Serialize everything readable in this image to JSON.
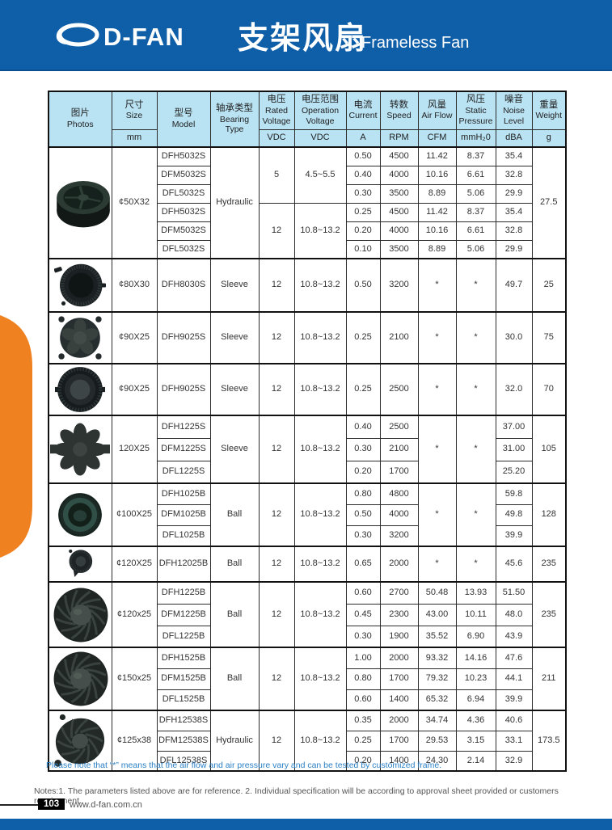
{
  "header": {
    "brand": "D-FAN",
    "logo_icon": "d-fan-swoosh-icon",
    "title_zh": "支架风扇",
    "title_en": "Frameless Fan",
    "bar_color": "#0e5ea8"
  },
  "side_tab": {
    "label": "Frameless Fan",
    "color": "#f08121"
  },
  "table": {
    "header_bg": "#b9e2f3",
    "columns": [
      {
        "zh": "图片",
        "en": "Photos",
        "unit": ""
      },
      {
        "zh": "尺寸",
        "en": "Size",
        "unit": "mm"
      },
      {
        "zh": "型号",
        "en": "Model",
        "unit": ""
      },
      {
        "zh": "轴承类型",
        "en": "Bearing Type",
        "unit": ""
      },
      {
        "zh": "电压",
        "en": "Rated Voltage",
        "unit": "VDC"
      },
      {
        "zh": "电压范围",
        "en": "Operation Voltage",
        "unit": "VDC"
      },
      {
        "zh": "电流",
        "en": "Current",
        "unit": "A"
      },
      {
        "zh": "转数",
        "en": "Speed",
        "unit": "RPM"
      },
      {
        "zh": "风量",
        "en": "Air Flow",
        "unit": "CFM"
      },
      {
        "zh": "风压",
        "en": "Static Pressure",
        "unit": "mmH₂0"
      },
      {
        "zh": "噪音",
        "en": "Noise Level",
        "unit": "dBA"
      },
      {
        "zh": "重量",
        "en": "Weight",
        "unit": "g"
      }
    ],
    "groups": [
      {
        "photo_icon": "fan-photo-centrifugal",
        "size": "¢50X32",
        "bearing": "Hydraulic",
        "weight": "27.5",
        "blocks": [
          {
            "rated": "5",
            "operation": "4.5~5.5",
            "rows": [
              {
                "model": "DFH5032S",
                "current": "0.50",
                "speed": "4500",
                "airflow": "11.42",
                "pressure": "8.37",
                "noise": "35.4"
              },
              {
                "model": "DFM5032S",
                "current": "0.40",
                "speed": "4000",
                "airflow": "10.16",
                "pressure": "6.61",
                "noise": "32.8"
              },
              {
                "model": "DFL5032S",
                "current": "0.30",
                "speed": "3500",
                "airflow": "8.89",
                "pressure": "5.06",
                "noise": "29.9"
              }
            ]
          },
          {
            "rated": "12",
            "operation": "10.8~13.2",
            "rows": [
              {
                "model": "DFH5032S",
                "current": "0.25",
                "speed": "4500",
                "airflow": "11.42",
                "pressure": "8.37",
                "noise": "35.4"
              },
              {
                "model": "DFM5032S",
                "current": "0.20",
                "speed": "4000",
                "airflow": "10.16",
                "pressure": "6.61",
                "noise": "32.8"
              },
              {
                "model": "DFL5032S",
                "current": "0.10",
                "speed": "3500",
                "airflow": "8.89",
                "pressure": "5.06",
                "noise": "29.9"
              }
            ]
          }
        ]
      },
      {
        "photo_icon": "fan-photo-blower",
        "size": "¢80X30",
        "bearing": "Sleeve",
        "weight": "25",
        "blocks": [
          {
            "rated": "12",
            "operation": "10.8~13.2",
            "rows": [
              {
                "model": "DFH8030S",
                "current": "0.50",
                "speed": "3200",
                "airflow": "*",
                "pressure": "*",
                "noise": "49.7"
              }
            ]
          }
        ]
      },
      {
        "photo_icon": "fan-photo-axial",
        "size": "¢90X25",
        "bearing": "Sleeve",
        "weight": "75",
        "blocks": [
          {
            "rated": "12",
            "operation": "10.8~13.2",
            "rows": [
              {
                "model": "DFH9025S",
                "current": "0.25",
                "speed": "2100",
                "airflow": "*",
                "pressure": "*",
                "noise": "30.0"
              }
            ]
          }
        ]
      },
      {
        "photo_icon": "fan-photo-serrated",
        "size": "¢90X25",
        "bearing": "Sleeve",
        "weight": "70",
        "blocks": [
          {
            "rated": "12",
            "operation": "10.8~13.2",
            "rows": [
              {
                "model": "DFH9025S",
                "current": "0.25",
                "speed": "2500",
                "airflow": "*",
                "pressure": "*",
                "noise": "32.0"
              }
            ]
          }
        ]
      },
      {
        "photo_icon": "fan-photo-star-blades",
        "size": "120X25",
        "bearing": "Sleeve",
        "weight": "105",
        "airflow_merged": "*",
        "pressure_merged": "*",
        "blocks": [
          {
            "rated": "12",
            "operation": "10.8~13.2",
            "rows": [
              {
                "model": "DFH1225S",
                "current": "0.40",
                "speed": "2500",
                "noise": "37.00"
              },
              {
                "model": "DFM1225S",
                "current": "0.30",
                "speed": "2100",
                "noise": "31.00"
              },
              {
                "model": "DFL1225S",
                "current": "0.20",
                "speed": "1700",
                "noise": "25.20"
              }
            ]
          }
        ]
      },
      {
        "photo_icon": "fan-photo-dome",
        "size": "¢100X25",
        "bearing": "Ball",
        "weight": "128",
        "airflow_merged": "*",
        "pressure_merged": "*",
        "blocks": [
          {
            "rated": "12",
            "operation": "10.8~13.2",
            "rows": [
              {
                "model": "DFH1025B",
                "current": "0.80",
                "speed": "4800",
                "noise": "59.8"
              },
              {
                "model": "DFM1025B",
                "current": "0.50",
                "speed": "4000",
                "noise": "49.8"
              },
              {
                "model": "DFL1025B",
                "current": "0.30",
                "speed": "3200",
                "noise": "39.9"
              }
            ]
          }
        ]
      },
      {
        "photo_icon": "fan-photo-round-bracket",
        "size": "¢120X25",
        "bearing": "Ball",
        "weight": "235",
        "blocks": [
          {
            "rated": "12",
            "operation": "10.8~13.2",
            "rows": [
              {
                "model": "DFH12025B",
                "current": "0.65",
                "speed": "2000",
                "airflow": "*",
                "pressure": "*",
                "noise": "45.6"
              }
            ]
          }
        ]
      },
      {
        "photo_icon": "fan-photo-impeller",
        "size": "¢120x25",
        "bearing": "Ball",
        "weight": "235",
        "blocks": [
          {
            "rated": "12",
            "operation": "10.8~13.2",
            "rows": [
              {
                "model": "DFH1225B",
                "current": "0.60",
                "speed": "2700",
                "airflow": "50.48",
                "pressure": "13.93",
                "noise": "51.50"
              },
              {
                "model": "DFM1225B",
                "current": "0.45",
                "speed": "2300",
                "airflow": "43.00",
                "pressure": "10.11",
                "noise": "48.0"
              },
              {
                "model": "DFL1225B",
                "current": "0.30",
                "speed": "1900",
                "airflow": "35.52",
                "pressure": "6.90",
                "noise": "43.9"
              }
            ]
          }
        ]
      },
      {
        "photo_icon": "fan-photo-impeller",
        "size": "¢150x25",
        "bearing": "Ball",
        "weight": "211",
        "blocks": [
          {
            "rated": "12",
            "operation": "10.8~13.2",
            "rows": [
              {
                "model": "DFH1525B",
                "current": "1.00",
                "speed": "2000",
                "airflow": "93.32",
                "pressure": "14.16",
                "noise": "47.6"
              },
              {
                "model": "DFM1525B",
                "current": "0.80",
                "speed": "1700",
                "airflow": "79.32",
                "pressure": "10.23",
                "noise": "44.1"
              },
              {
                "model": "DFL1525B",
                "current": "0.60",
                "speed": "1400",
                "airflow": "65.32",
                "pressure": "6.94",
                "noise": "39.9"
              }
            ]
          }
        ]
      },
      {
        "photo_icon": "fan-photo-impeller-angled",
        "size": "¢125x38",
        "bearing": "Hydraulic",
        "weight": "173.5",
        "blocks": [
          {
            "rated": "12",
            "operation": "10.8~13.2",
            "rows": [
              {
                "model": "DFH12538S",
                "current": "0.35",
                "speed": "2000",
                "airflow": "34.74",
                "pressure": "4.36",
                "noise": "40.6"
              },
              {
                "model": "DFM12538S",
                "current": "0.25",
                "speed": "1700",
                "airflow": "29.53",
                "pressure": "3.15",
                "noise": "33.1"
              },
              {
                "model": "DFL12538S",
                "current": "0.20",
                "speed": "1400",
                "airflow": "24.30",
                "pressure": "2.14",
                "noise": "32.9"
              }
            ]
          }
        ]
      }
    ]
  },
  "notes": {
    "star_note": "Please note that  “*” means that the air flow and air pressure vary and can be tested by customized frame.",
    "general": "Notes:1. The parameters listed above are for reference.   2. Individual specification will be according to approval sheet provided or customers requirement."
  },
  "footer": {
    "page_number": "103",
    "website": "www.d-fan.com.cn"
  }
}
